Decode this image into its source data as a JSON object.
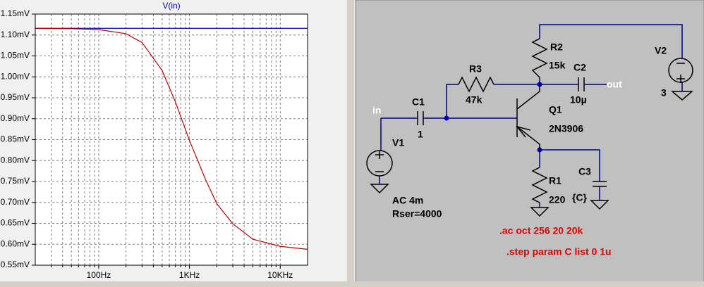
{
  "chart_data": {
    "type": "line",
    "title": "V(in)",
    "xscale": "log",
    "x": [
      20,
      50,
      100,
      200,
      300,
      500,
      700,
      1000,
      1500,
      2000,
      3000,
      5000,
      10000,
      20000
    ],
    "series": [
      {
        "color": "#0000c0",
        "values": [
          1.116,
          1.116,
          1.116,
          1.116,
          1.116,
          1.116,
          1.116,
          1.116,
          1.116,
          1.116,
          1.116,
          1.116,
          1.116,
          1.116
        ]
      },
      {
        "color": "#c00000",
        "values": [
          1.116,
          1.115,
          1.113,
          1.103,
          1.082,
          1.015,
          0.94,
          0.848,
          0.755,
          0.697,
          0.649,
          0.612,
          0.595,
          0.588
        ]
      }
    ],
    "xlim": [
      20,
      20000
    ],
    "xticks": [
      {
        "value": 100,
        "label": "100Hz"
      },
      {
        "value": 1000,
        "label": "1KHz"
      },
      {
        "value": 10000,
        "label": "10KHz"
      }
    ],
    "xminorticks": [
      30,
      40,
      50,
      60,
      70,
      80,
      90,
      200,
      300,
      400,
      500,
      600,
      700,
      800,
      900,
      2000,
      3000,
      4000,
      5000,
      6000,
      7000,
      8000,
      9000
    ],
    "ylim": [
      0.55,
      1.15
    ],
    "yticks": [
      {
        "value": 0.55,
        "label": "0.55mV"
      },
      {
        "value": 0.6,
        "label": "0.60mV"
      },
      {
        "value": 0.65,
        "label": "0.65mV"
      },
      {
        "value": 0.7,
        "label": "0.70mV"
      },
      {
        "value": 0.75,
        "label": "0.75mV"
      },
      {
        "value": 0.8,
        "label": "0.80mV"
      },
      {
        "value": 0.85,
        "label": "0.85mV"
      },
      {
        "value": 0.9,
        "label": "0.90mV"
      },
      {
        "value": 0.95,
        "label": "0.95mV"
      },
      {
        "value": 1.0,
        "label": "1.00mV"
      },
      {
        "value": 1.05,
        "label": "1.05mV"
      },
      {
        "value": 1.1,
        "label": "1.10mV"
      },
      {
        "value": 1.15,
        "label": "1.15mV"
      }
    ],
    "grid": true
  },
  "schematic": {
    "labels": {
      "in": "in",
      "C1": "C1",
      "C1_value": "1",
      "V1": "V1",
      "R3": "R3",
      "R3_value": "47k",
      "R2": "R2",
      "R2_value": "15k",
      "C2": "C2",
      "C2_value": "10µ",
      "out": "out",
      "Q1": "Q1",
      "Q1_model": "2N3906",
      "V2": "V2",
      "V2_value": "3",
      "R1": "R1",
      "R1_value": "220",
      "C3": "C3",
      "C3_value": "{C}",
      "V1_ac": "AC 4m",
      "V1_rser": "Rser=4000"
    },
    "directives": [
      ".ac oct 256 20 20k",
      ".step param C list 0 1u"
    ]
  }
}
